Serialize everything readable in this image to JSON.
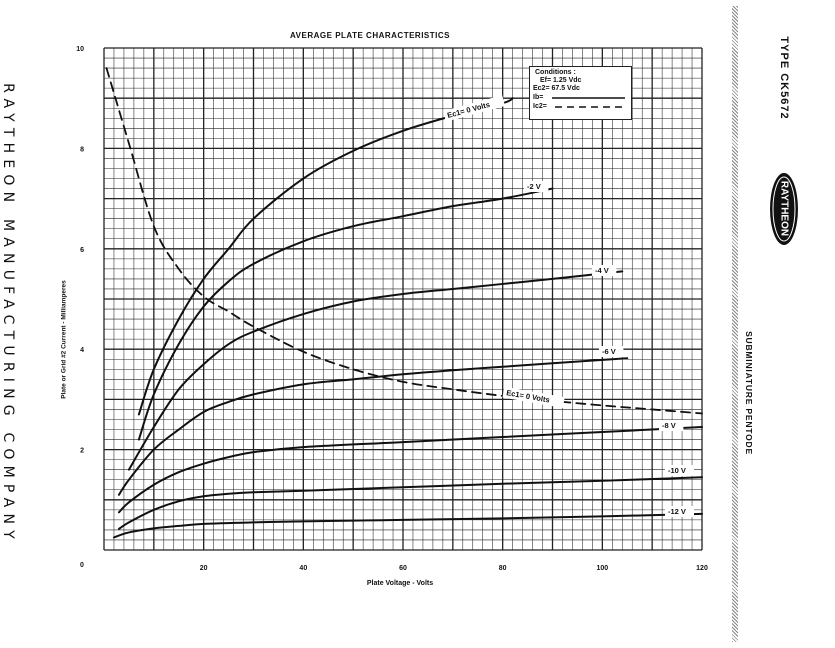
{
  "document": {
    "company": "RAYTHEON MANUFACTURING COMPANY",
    "type_label": "TYPE CK5672",
    "logo_text": "RAYTHEON",
    "subtitle": "SUBMINIATURE PENTODE"
  },
  "conditions": {
    "title": "Conditions :",
    "ef": "Ef= 1.25 Vdc",
    "ec2": "Ec2= 67.5 Vdc",
    "ib": "Ib=",
    "ic2": "Ic2="
  },
  "chart_data": {
    "type": "line",
    "title": "AVERAGE PLATE CHARACTERISTICS",
    "xlabel": "Plate Voltage - Volts",
    "ylabel": "Plate or Grid #2 Current - Milliamperes",
    "xlim": [
      0,
      120
    ],
    "ylim": [
      0,
      10
    ],
    "x_ticks": [
      "0",
      "20",
      "40",
      "60",
      "80",
      "100",
      "120"
    ],
    "y_ticks": [
      "2",
      "4",
      "6",
      "8",
      "10"
    ],
    "grid": true,
    "series": [
      {
        "name": "Ec1= 0 Volts",
        "curve": "Ib",
        "style": "solid",
        "x": [
          7,
          10,
          15,
          20,
          25,
          30,
          40,
          50,
          60,
          70,
          80,
          82
        ],
        "y": [
          2.7,
          3.6,
          4.6,
          5.4,
          6.0,
          6.6,
          7.4,
          7.95,
          8.35,
          8.65,
          8.9,
          9.0
        ]
      },
      {
        "name": "-2 V",
        "curve": "Ib",
        "style": "solid",
        "x": [
          7,
          10,
          15,
          20,
          25,
          30,
          40,
          50,
          60,
          70,
          80,
          90
        ],
        "y": [
          2.2,
          3.1,
          4.1,
          4.85,
          5.35,
          5.7,
          6.15,
          6.45,
          6.65,
          6.85,
          7.0,
          7.2
        ]
      },
      {
        "name": "-4 V",
        "curve": "Ib",
        "style": "solid",
        "x": [
          5,
          10,
          15,
          20,
          25,
          30,
          40,
          50,
          60,
          70,
          80,
          90,
          104
        ],
        "y": [
          1.6,
          2.45,
          3.2,
          3.7,
          4.1,
          4.35,
          4.7,
          4.95,
          5.1,
          5.2,
          5.3,
          5.4,
          5.55
        ]
      },
      {
        "name": "-6 V",
        "curve": "Ib",
        "style": "solid",
        "x": [
          3,
          5,
          10,
          15,
          20,
          25,
          30,
          40,
          50,
          60,
          70,
          80,
          90,
          105
        ],
        "y": [
          1.1,
          1.4,
          2.0,
          2.4,
          2.75,
          2.95,
          3.1,
          3.3,
          3.4,
          3.5,
          3.58,
          3.65,
          3.72,
          3.82
        ]
      },
      {
        "name": "-8 V",
        "curve": "Ib",
        "style": "solid",
        "x": [
          3,
          5,
          10,
          15,
          20,
          25,
          30,
          40,
          60,
          80,
          100,
          120
        ],
        "y": [
          0.75,
          0.95,
          1.3,
          1.55,
          1.72,
          1.85,
          1.95,
          2.05,
          2.15,
          2.25,
          2.35,
          2.45
        ]
      },
      {
        "name": "-10 V",
        "curve": "Ib",
        "style": "solid",
        "x": [
          3,
          5,
          10,
          15,
          20,
          25,
          30,
          40,
          60,
          80,
          100,
          120
        ],
        "y": [
          0.42,
          0.55,
          0.8,
          0.97,
          1.07,
          1.12,
          1.15,
          1.18,
          1.25,
          1.32,
          1.38,
          1.45
        ]
      },
      {
        "name": "-12 V",
        "curve": "Ib",
        "style": "solid",
        "x": [
          2,
          5,
          10,
          15,
          20,
          30,
          40,
          60,
          80,
          100,
          120
        ],
        "y": [
          0.25,
          0.35,
          0.43,
          0.48,
          0.52,
          0.55,
          0.57,
          0.6,
          0.63,
          0.67,
          0.72
        ]
      },
      {
        "name": "Ec1= 0 Volts",
        "curve": "Ic2",
        "style": "dashed",
        "x": [
          0.5,
          5,
          10,
          15,
          20,
          25,
          30,
          40,
          50,
          60,
          70,
          80,
          90,
          100,
          110,
          120
        ],
        "y": [
          9.6,
          8.1,
          6.45,
          5.6,
          5.05,
          4.75,
          4.45,
          3.95,
          3.6,
          3.35,
          3.2,
          3.07,
          2.97,
          2.88,
          2.8,
          2.72
        ]
      }
    ]
  }
}
